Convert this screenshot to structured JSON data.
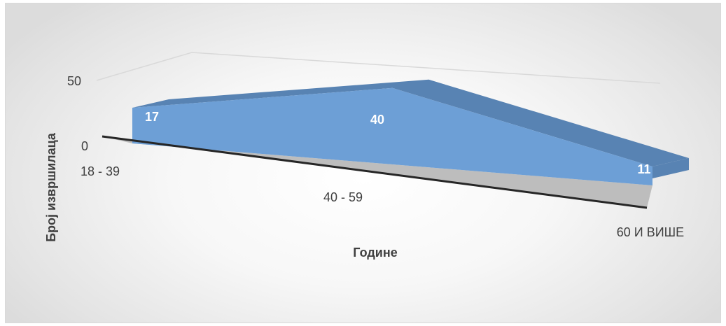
{
  "chart_data": {
    "type": "area",
    "three_d": true,
    "categories": [
      "18 - 39",
      "40 - 59",
      "60 И ВИШЕ"
    ],
    "series": [
      {
        "values": [
          17,
          40,
          11
        ]
      }
    ],
    "data_labels": [
      "17",
      "40",
      "11"
    ],
    "xlabel": "Године",
    "ylabel": "Број извршилаца",
    "y_ticks": [
      "0",
      "50"
    ],
    "ylim": [
      0,
      50
    ],
    "grid": true,
    "legend": "none",
    "colors": {
      "front_face": "#6d9fd6",
      "top_face": "#5883b3",
      "floor": "#bdbdbd",
      "axis_line": "#262626",
      "gridline": "#d9d9d9",
      "label_text": "#404040",
      "data_label_text": "#ffffff"
    }
  }
}
